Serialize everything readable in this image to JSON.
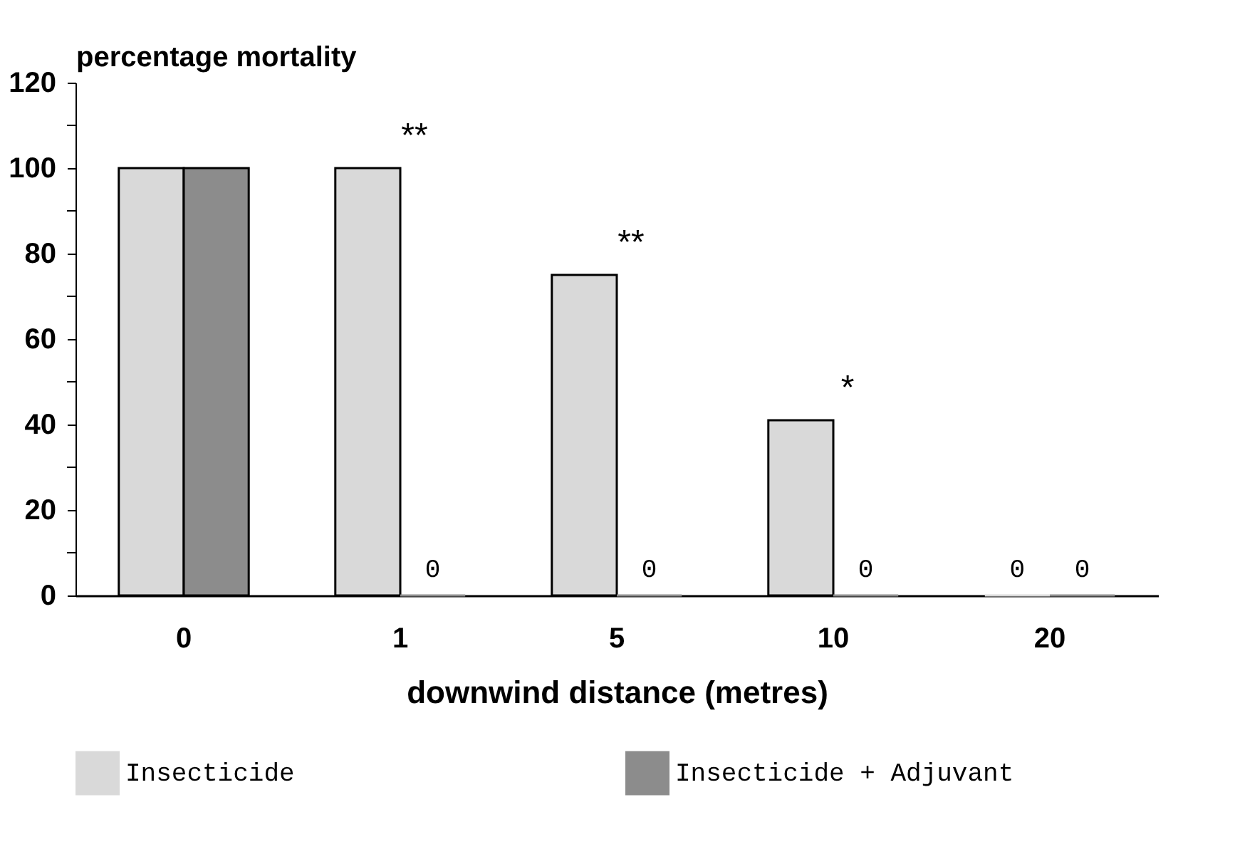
{
  "chart_data": {
    "type": "bar",
    "xlabel": "downwind distance (metres)",
    "ylabel": "percentage mortality",
    "categories": [
      "0",
      "1",
      "5",
      "10",
      "20"
    ],
    "series": [
      {
        "name": "Insecticide",
        "color": "#d9d9d9",
        "values": [
          100,
          100,
          75,
          41,
          0
        ],
        "value_labels": [
          null,
          null,
          null,
          null,
          "0"
        ]
      },
      {
        "name": "Insecticide + Adjuvant",
        "color": "#8c8c8c",
        "values": [
          100,
          0,
          0,
          0,
          0
        ],
        "value_labels": [
          null,
          "0",
          "0",
          "0",
          "0"
        ]
      }
    ],
    "ylim": [
      0,
      120
    ],
    "yticks": [
      0,
      {
        "value": 10,
        "label": null
      },
      20,
      {
        "value": 30,
        "label": null
      },
      40,
      {
        "value": 50,
        "label": null
      },
      60,
      {
        "value": 70,
        "label": null
      },
      80,
      {
        "value": 90,
        "label": null
      },
      100,
      {
        "value": 110,
        "label": null
      },
      120
    ],
    "annotations": [
      {
        "text": "**",
        "x": "1",
        "y": 100
      },
      {
        "text": "**",
        "x": "5",
        "y": 75
      },
      {
        "text": "*",
        "x": "10",
        "y": 41
      }
    ],
    "grid": false,
    "legend": "bottom"
  }
}
